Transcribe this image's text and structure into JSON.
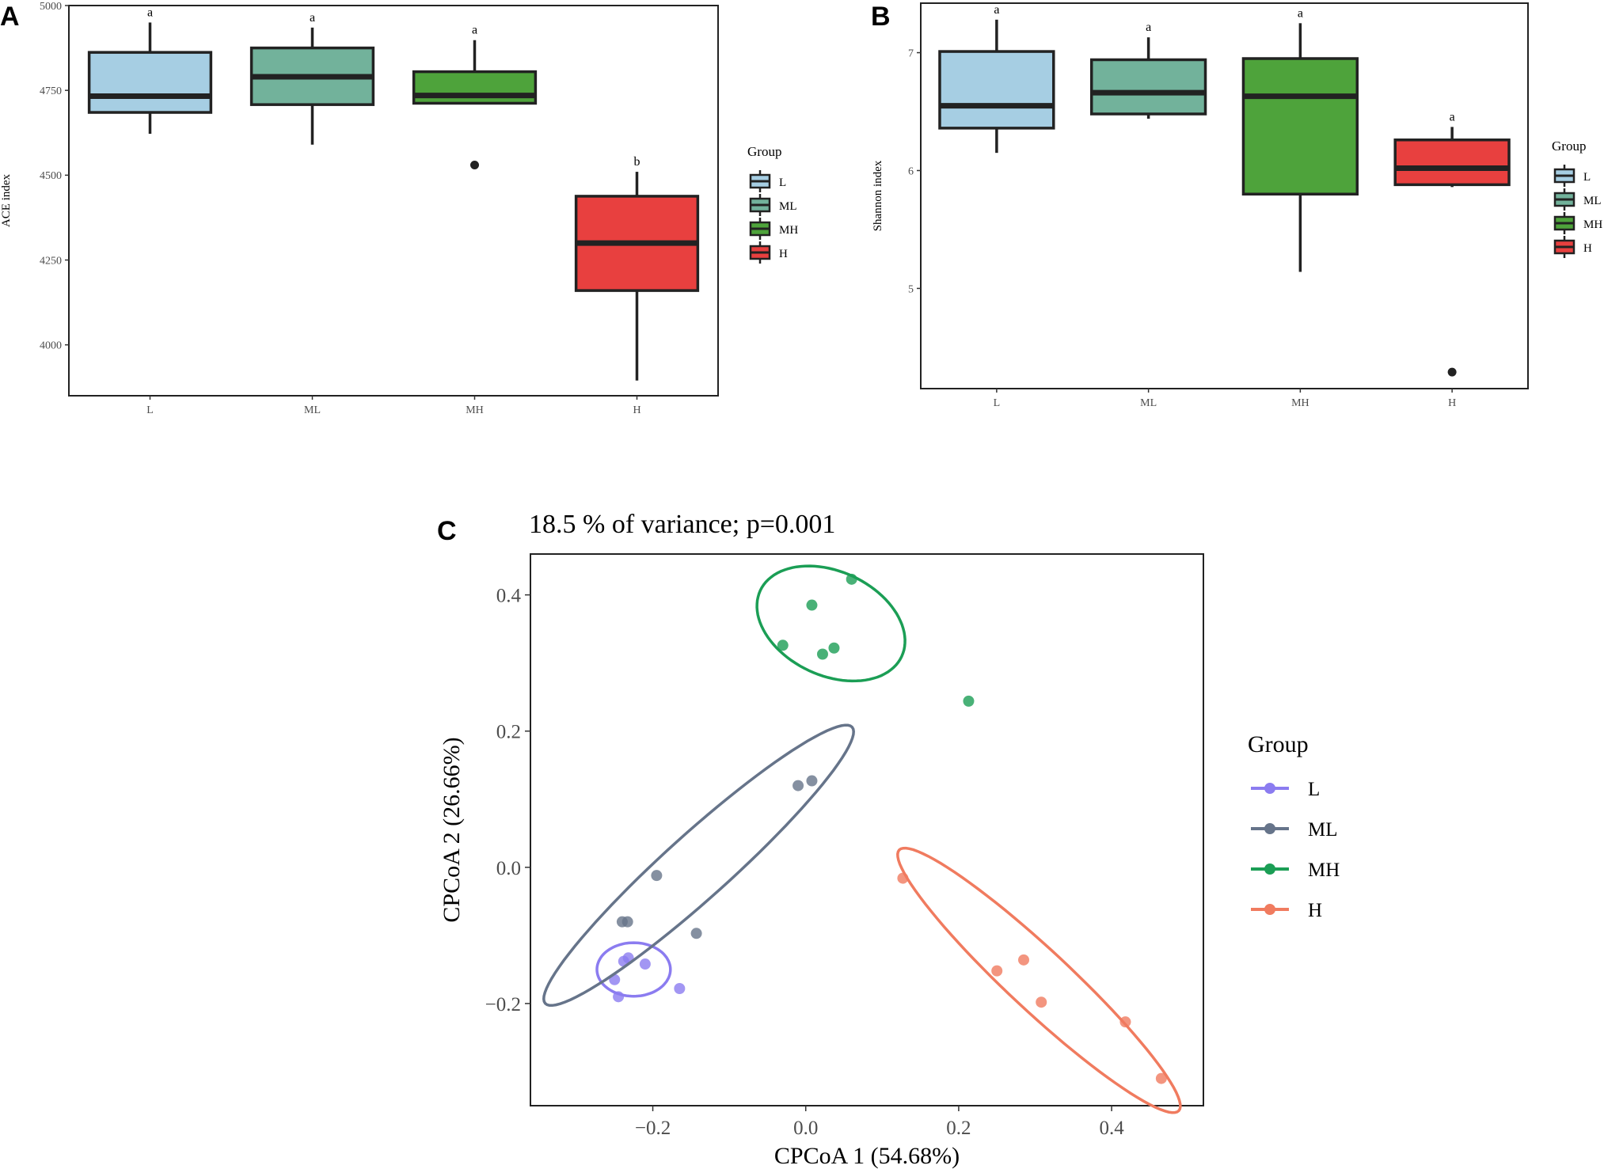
{
  "panels": {
    "a": {
      "letter": "A"
    },
    "b": {
      "letter": "B"
    },
    "c": {
      "letter": "C",
      "title": "18.5 % of variance; p=0.001"
    }
  },
  "legend_title": "Group",
  "groups": [
    {
      "name": "L",
      "box_fill": "#a6cee3",
      "pcoa_color": "#8b7cf0"
    },
    {
      "name": "ML",
      "box_fill": "#72b29b",
      "pcoa_color": "#66748a"
    },
    {
      "name": "MH",
      "box_fill": "#4ea33b",
      "pcoa_color": "#1b9e55"
    },
    {
      "name": "H",
      "box_fill": "#e8403f",
      "pcoa_color": "#f07b5f"
    }
  ],
  "chart_data": [
    {
      "id": "ace",
      "type": "boxplot",
      "ylabel": "ACE index",
      "categories": [
        "L",
        "ML",
        "MH",
        "H"
      ],
      "ylim": [
        3850,
        5000
      ],
      "yticks": [
        4000,
        4250,
        4500,
        4750,
        5000
      ],
      "boxes": [
        {
          "group": "L",
          "whisker_low": 4622,
          "q1": 4685,
          "median": 4733,
          "q3": 4862,
          "whisker_high": 4950,
          "outliers": [],
          "letter": "a"
        },
        {
          "group": "ML",
          "whisker_low": 4590,
          "q1": 4708,
          "median": 4790,
          "q3": 4875,
          "whisker_high": 4935,
          "outliers": [],
          "letter": "a"
        },
        {
          "group": "MH",
          "whisker_low": 4712,
          "q1": 4712,
          "median": 4735,
          "q3": 4805,
          "whisker_high": 4898,
          "outliers": [
            4530
          ],
          "letter": "a"
        },
        {
          "group": "H",
          "whisker_low": 3895,
          "q1": 4160,
          "median": 4300,
          "q3": 4438,
          "whisker_high": 4510,
          "outliers": [],
          "letter": "b"
        }
      ]
    },
    {
      "id": "shannon",
      "type": "boxplot",
      "ylabel": "Shannon index",
      "categories": [
        "L",
        "ML",
        "MH",
        "H"
      ],
      "ylim": [
        4.15,
        7.42
      ],
      "yticks": [
        5,
        6,
        7
      ],
      "boxes": [
        {
          "group": "L",
          "whisker_low": 6.15,
          "q1": 6.36,
          "median": 6.55,
          "q3": 7.01,
          "whisker_high": 7.28,
          "outliers": [],
          "letter": "a"
        },
        {
          "group": "ML",
          "whisker_low": 6.44,
          "q1": 6.48,
          "median": 6.66,
          "q3": 6.94,
          "whisker_high": 7.13,
          "outliers": [],
          "letter": "a"
        },
        {
          "group": "MH",
          "whisker_low": 5.14,
          "q1": 5.8,
          "median": 6.63,
          "q3": 6.95,
          "whisker_high": 7.25,
          "outliers": [],
          "letter": "a"
        },
        {
          "group": "H",
          "whisker_low": 5.86,
          "q1": 5.88,
          "median": 6.02,
          "q3": 6.26,
          "whisker_high": 6.37,
          "outliers": [
            4.29
          ],
          "letter": "a"
        }
      ]
    },
    {
      "id": "cpcoa",
      "type": "scatter",
      "title": "18.5 % of variance; p=0.001",
      "xlabel": "CPCoA 1 (54.68%)",
      "ylabel": "CPCoA 2 (26.66%)",
      "xlim": [
        -0.36,
        0.52
      ],
      "ylim": [
        -0.35,
        0.46
      ],
      "xticks": [
        -0.2,
        0.0,
        0.2,
        0.4
      ],
      "xtick_labels": [
        "−0.2",
        "0.0",
        "0.2",
        "0.4"
      ],
      "yticks": [
        -0.2,
        0.0,
        0.2,
        0.4
      ],
      "ytick_labels": [
        "−0.2",
        "0.0",
        "0.2",
        "0.4"
      ],
      "series": [
        {
          "name": "L",
          "points": [
            [
              -0.25,
              -0.165
            ],
            [
              -0.245,
              -0.19
            ],
            [
              -0.238,
              -0.138
            ],
            [
              -0.232,
              -0.133
            ],
            [
              -0.21,
              -0.142
            ],
            [
              -0.165,
              -0.178
            ]
          ],
          "ellipse": {
            "cx": -0.225,
            "cy": -0.15,
            "rx": 0.048,
            "ry": 0.035,
            "angle_deg": 0
          }
        },
        {
          "name": "ML",
          "points": [
            [
              -0.24,
              -0.08
            ],
            [
              -0.233,
              -0.08
            ],
            [
              -0.195,
              -0.012
            ],
            [
              -0.143,
              -0.097
            ],
            [
              -0.01,
              0.12
            ],
            [
              0.008,
              0.127
            ]
          ],
          "ellipse": {
            "cx": -0.14,
            "cy": 0.003,
            "rx": 0.27,
            "ry": 0.042,
            "angle_deg": 42
          }
        },
        {
          "name": "MH",
          "points": [
            [
              -0.03,
              0.326
            ],
            [
              0.008,
              0.385
            ],
            [
              0.022,
              0.313
            ],
            [
              0.037,
              0.322
            ],
            [
              0.06,
              0.423
            ],
            [
              0.213,
              0.244
            ]
          ],
          "ellipse": {
            "cx": 0.033,
            "cy": 0.358,
            "rx": 0.102,
            "ry": 0.068,
            "angle_deg": -25
          }
        },
        {
          "name": "H",
          "points": [
            [
              0.127,
              -0.016
            ],
            [
              0.25,
              -0.152
            ],
            [
              0.285,
              -0.136
            ],
            [
              0.308,
              -0.198
            ],
            [
              0.418,
              -0.227
            ],
            [
              0.465,
              -0.31
            ]
          ],
          "ellipse": {
            "cx": 0.305,
            "cy": -0.166,
            "rx": 0.25,
            "ry": 0.04,
            "angle_deg": -43
          }
        }
      ]
    }
  ]
}
